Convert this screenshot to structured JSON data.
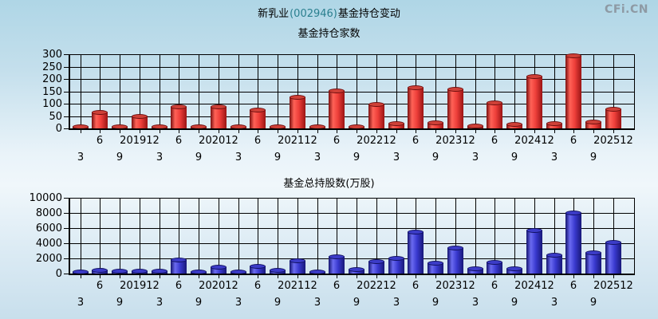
{
  "header": {
    "title_prefix": "新乳业",
    "title_code": "(002946)",
    "title_suffix": "基金持仓变动",
    "logo": "CFi.CN"
  },
  "colors": {
    "text": "#000000",
    "title_code": "#2a7f8f",
    "logo": "#8e9aa4",
    "grid": "#000000",
    "axis": "#000000",
    "red_bar_gradient": [
      "#7a1010",
      "#ff6257",
      "#ee3f3a",
      "#9a1414"
    ],
    "red_cap_fill": "#cf4138",
    "red_cap_border": "#6d0e0e",
    "blue_bar_gradient": [
      "#14146e",
      "#6a6af0",
      "#3a3ad0",
      "#181878"
    ],
    "blue_cap_fill": "#3c3cc8",
    "blue_cap_border": "#101060"
  },
  "chart_data": [
    {
      "type": "bar",
      "title": "基金持仓家数",
      "series_color": "red",
      "ylim": [
        0,
        300
      ],
      "yticks": [
        0,
        50,
        100,
        150,
        200,
        250,
        300
      ],
      "grid": true,
      "categories": [
        "201903",
        "201906",
        "201909",
        "201912",
        "202003",
        "202006",
        "202009",
        "202012",
        "202103",
        "202106",
        "202109",
        "202112",
        "202203",
        "202206",
        "202209",
        "202212",
        "202303",
        "202306",
        "202309",
        "202312",
        "202403",
        "202406",
        "202409",
        "202412",
        "202503",
        "202506",
        "202509",
        "202512"
      ],
      "values": [
        5,
        65,
        5,
        48,
        5,
        88,
        5,
        87,
        5,
        73,
        5,
        127,
        5,
        150,
        5,
        97,
        18,
        165,
        21,
        158,
        10,
        103,
        15,
        210,
        18,
        292,
        26,
        78
      ],
      "xlabel_rows": [
        {
          "label": "3",
          "row": 2
        },
        {
          "label": "6",
          "row": 1
        },
        {
          "label": "9",
          "row": 2
        },
        {
          "label": "201912",
          "row": 1
        },
        {
          "label": "3",
          "row": 2
        },
        {
          "label": "6",
          "row": 1
        },
        {
          "label": "9",
          "row": 2
        },
        {
          "label": "202012",
          "row": 1
        },
        {
          "label": "3",
          "row": 2
        },
        {
          "label": "6",
          "row": 1
        },
        {
          "label": "9",
          "row": 2
        },
        {
          "label": "202112",
          "row": 1
        },
        {
          "label": "3",
          "row": 2
        },
        {
          "label": "6",
          "row": 1
        },
        {
          "label": "9",
          "row": 2
        },
        {
          "label": "202212",
          "row": 1
        },
        {
          "label": "3",
          "row": 2
        },
        {
          "label": "6",
          "row": 1
        },
        {
          "label": "9",
          "row": 2
        },
        {
          "label": "202312",
          "row": 1
        },
        {
          "label": "3",
          "row": 2
        },
        {
          "label": "6",
          "row": 1
        },
        {
          "label": "9",
          "row": 2
        },
        {
          "label": "202412",
          "row": 1
        },
        {
          "label": "3",
          "row": 2
        },
        {
          "label": "6",
          "row": 1
        },
        {
          "label": "9",
          "row": 2
        },
        {
          "label": "202512",
          "row": 1
        }
      ]
    },
    {
      "type": "bar",
      "title": "基金总持股数(万股)",
      "series_color": "blue",
      "ylim": [
        0,
        10000
      ],
      "yticks": [
        0,
        2000,
        4000,
        6000,
        8000,
        10000
      ],
      "grid": true,
      "categories": [
        "201903",
        "201906",
        "201909",
        "201912",
        "202003",
        "202006",
        "202009",
        "202012",
        "202103",
        "202106",
        "202109",
        "202112",
        "202203",
        "202206",
        "202209",
        "202212",
        "202303",
        "202306",
        "202309",
        "202312",
        "202403",
        "202406",
        "202409",
        "202412",
        "202503",
        "202506",
        "202509",
        "202512"
      ],
      "values": [
        220,
        450,
        300,
        300,
        350,
        1800,
        150,
        850,
        150,
        900,
        400,
        1650,
        250,
        2250,
        550,
        1550,
        2000,
        5500,
        1350,
        3350,
        650,
        1450,
        600,
        5650,
        2450,
        8050,
        2700,
        4100
      ],
      "xlabel_rows": [
        {
          "label": "3",
          "row": 2
        },
        {
          "label": "6",
          "row": 1
        },
        {
          "label": "9",
          "row": 2
        },
        {
          "label": "201912",
          "row": 1
        },
        {
          "label": "3",
          "row": 2
        },
        {
          "label": "6",
          "row": 1
        },
        {
          "label": "9",
          "row": 2
        },
        {
          "label": "202012",
          "row": 1
        },
        {
          "label": "3",
          "row": 2
        },
        {
          "label": "6",
          "row": 1
        },
        {
          "label": "9",
          "row": 2
        },
        {
          "label": "202112",
          "row": 1
        },
        {
          "label": "3",
          "row": 2
        },
        {
          "label": "6",
          "row": 1
        },
        {
          "label": "9",
          "row": 2
        },
        {
          "label": "202212",
          "row": 1
        },
        {
          "label": "3",
          "row": 2
        },
        {
          "label": "6",
          "row": 1
        },
        {
          "label": "9",
          "row": 2
        },
        {
          "label": "202312",
          "row": 1
        },
        {
          "label": "3",
          "row": 2
        },
        {
          "label": "6",
          "row": 1
        },
        {
          "label": "9",
          "row": 2
        },
        {
          "label": "202412",
          "row": 1
        },
        {
          "label": "3",
          "row": 2
        },
        {
          "label": "6",
          "row": 1
        },
        {
          "label": "9",
          "row": 2
        },
        {
          "label": "202512",
          "row": 1
        }
      ]
    }
  ]
}
